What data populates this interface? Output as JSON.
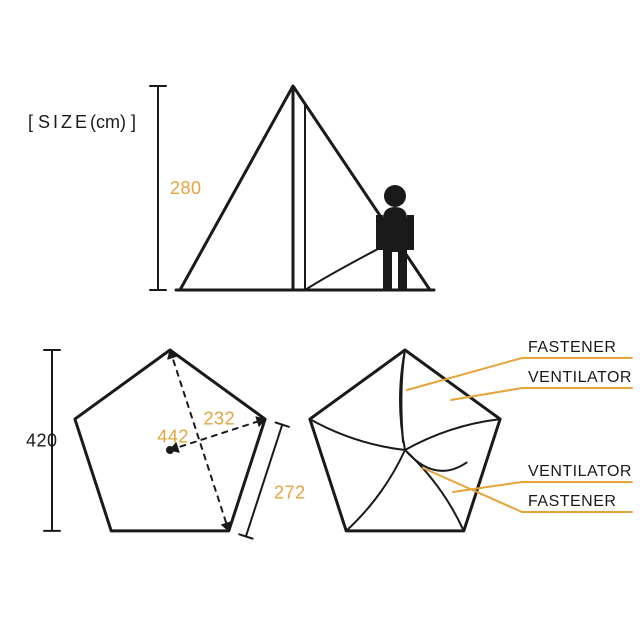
{
  "title_prefix": "[ ",
  "title_word": "SIZE",
  "title_unit": "(cm)",
  "title_suffix": " ]",
  "height_label": "280",
  "width_label": "420",
  "diag_label": "442",
  "radius_label": "232",
  "side_label": "272",
  "callout1": "FASTENER",
  "callout2": "VENTILATOR",
  "callout3": "VENTILATOR",
  "callout4": "FASTENER",
  "colors": {
    "stroke": "#1a1a1a",
    "accent": "#e5a43a",
    "leader": "#e5a43a",
    "text": "#1a1a1a"
  },
  "stroke_width": 3,
  "thin_width": 2,
  "font": {
    "title": 18,
    "dim": 18,
    "callout": 16
  }
}
